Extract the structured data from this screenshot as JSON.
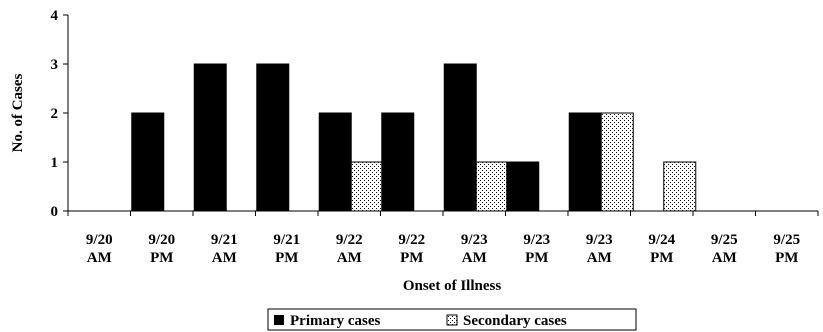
{
  "chart_data": {
    "type": "bar",
    "title": "",
    "xlabel": "Onset of Illness",
    "ylabel": "No. of Cases",
    "ylim": [
      0,
      4
    ],
    "yticks": [
      "0",
      "1",
      "2",
      "3",
      "4"
    ],
    "grid": false,
    "legend_position": "bottom",
    "categories": [
      [
        "9/20",
        "AM"
      ],
      [
        "9/20",
        "PM"
      ],
      [
        "9/21",
        "AM"
      ],
      [
        "9/21",
        "PM"
      ],
      [
        "9/22",
        "AM"
      ],
      [
        "9/22",
        "PM"
      ],
      [
        "9/23",
        "AM"
      ],
      [
        "9/23",
        "PM"
      ],
      [
        "9/23",
        "AM"
      ],
      [
        "9/24",
        "PM"
      ],
      [
        "9/25",
        "AM"
      ],
      [
        "9/25",
        "PM"
      ]
    ],
    "series": [
      {
        "name": "Primary cases",
        "color": "#000000",
        "pattern": "solid",
        "values": [
          0,
          2,
          3,
          3,
          2,
          2,
          3,
          1,
          2,
          0,
          0,
          0
        ]
      },
      {
        "name": "Secondary cases",
        "color": "#ffffff",
        "pattern": "dotted",
        "values": [
          0,
          0,
          0,
          0,
          1,
          0,
          1,
          0,
          2,
          1,
          0,
          0
        ]
      }
    ]
  }
}
